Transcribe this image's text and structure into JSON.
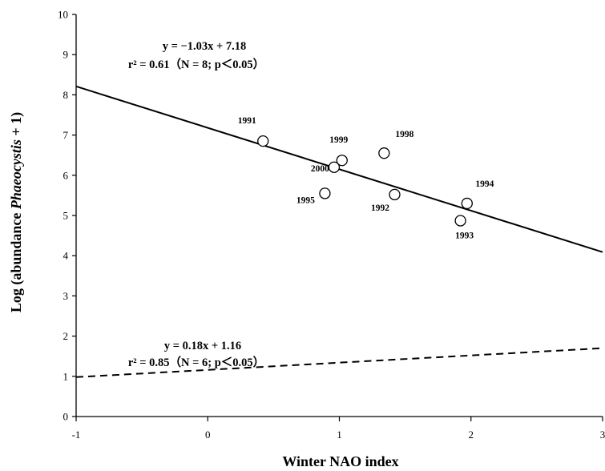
{
  "chart_data": {
    "type": "scatter",
    "xlabel": "Winter NAO index",
    "ylabel_parts": [
      "Log (abundance ",
      "Phaeocystis",
      " + 1)"
    ],
    "xlim": [
      -1,
      3
    ],
    "ylim": [
      0,
      10
    ],
    "xticks": [
      -1,
      0,
      1,
      2,
      3
    ],
    "yticks": [
      0,
      1,
      2,
      3,
      4,
      5,
      6,
      7,
      8,
      9,
      10
    ],
    "grid": false,
    "points": [
      {
        "label": "1991",
        "x": 0.42,
        "y": 6.85
      },
      {
        "label": "1999",
        "x": 1.02,
        "y": 6.37
      },
      {
        "label": "2000",
        "x": 0.96,
        "y": 6.2
      },
      {
        "label": "1998",
        "x": 1.34,
        "y": 6.55
      },
      {
        "label": "1995",
        "x": 0.89,
        "y": 5.55
      },
      {
        "label": "1992",
        "x": 1.42,
        "y": 5.52
      },
      {
        "label": "1994",
        "x": 1.97,
        "y": 5.3
      },
      {
        "label": "1993",
        "x": 1.92,
        "y": 4.87
      }
    ],
    "lines": [
      {
        "style": "solid",
        "slope": -1.03,
        "intercept": 7.18,
        "equation": "y = −1.03x + 7.18",
        "stats": "r² = 0.61（N = 8;  p＜0.05）"
      },
      {
        "style": "dashed",
        "slope": 0.18,
        "intercept": 1.16,
        "equation": "y = 0.18x + 1.16",
        "stats": "r² = 0.85（N = 6;  p＜0.05）"
      }
    ]
  }
}
